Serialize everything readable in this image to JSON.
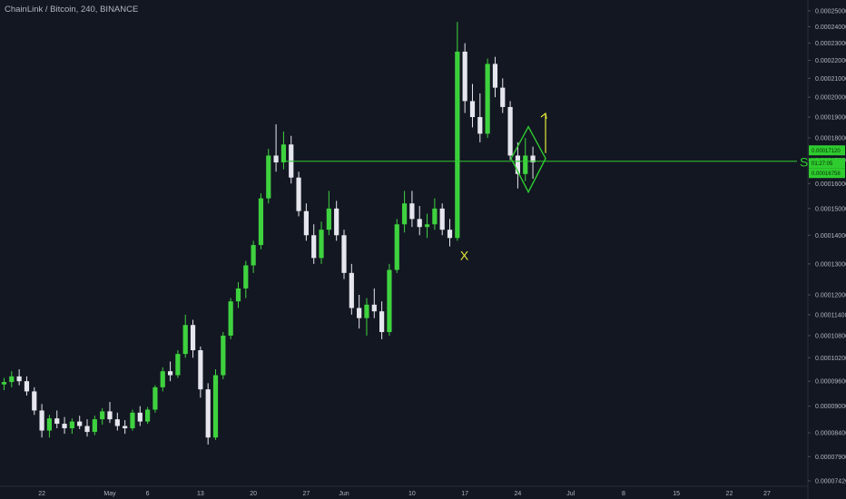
{
  "header": {
    "title": "ChainLink / Bitcoin, 240, BINANCE"
  },
  "colors": {
    "background": "#131722",
    "up": "#3fd23f",
    "down": "#e6e6ee",
    "support": "#2ecc2e",
    "arrow": "#e6e63a",
    "axis_text": "#b2b5be",
    "price_tag": "#2ecc2e"
  },
  "chart_data": {
    "type": "candlestick",
    "y_ticks": [
      "0.00007420",
      "0.00007900",
      "0.00008400",
      "0.00009000",
      "0.00009600",
      "0.00010200",
      "0.00010800",
      "0.00011400",
      "0.00012000",
      "0.00013000",
      "0.00014000",
      "0.00015000",
      "0.00016000",
      "0.00017000",
      "0.00018000",
      "0.00019000",
      "0.00020000",
      "0.00021000",
      "0.00022000",
      "0.00023000",
      "0.00024000",
      "0.00025000"
    ],
    "x_ticks": [
      "22",
      "May",
      "6",
      "13",
      "20",
      "27",
      "Jun",
      "10",
      "17",
      "24",
      "Jul",
      "8",
      "15",
      "22",
      "27"
    ],
    "price_tags": [
      "0.00017120",
      "01:27:05",
      "0.00016758"
    ],
    "annotations": {
      "support_label": "S",
      "marker_label": "X"
    },
    "series": [
      {
        "values": [
          [
            "2019-04-17",
            9.52e-05,
            9.68e-05,
            9.38e-05,
            9.58e-05
          ],
          [
            "2019-04-18",
            9.58e-05,
            9.85e-05,
            9.45e-05,
            9.72e-05
          ],
          [
            "2019-04-19",
            9.72e-05,
            9.9e-05,
            9.5e-05,
            9.6e-05
          ],
          [
            "2019-04-20",
            9.6e-05,
            9.72e-05,
            9.25e-05,
            9.35e-05
          ],
          [
            "2019-04-21",
            9.35e-05,
            9.45e-05,
            8.8e-05,
            8.9e-05
          ],
          [
            "2019-04-22",
            8.9e-05,
            9.05e-05,
            8.3e-05,
            8.45e-05
          ],
          [
            "2019-04-23",
            8.45e-05,
            8.8e-05,
            8.3e-05,
            8.72e-05
          ],
          [
            "2019-04-24",
            8.72e-05,
            8.9e-05,
            8.5e-05,
            8.6e-05
          ],
          [
            "2019-04-25",
            8.6e-05,
            8.75e-05,
            8.38e-05,
            8.5e-05
          ],
          [
            "2019-04-26",
            8.5e-05,
            8.72e-05,
            8.38e-05,
            8.65e-05
          ],
          [
            "2019-04-27",
            8.65e-05,
            8.78e-05,
            8.48e-05,
            8.55e-05
          ],
          [
            "2019-04-28",
            8.55e-05,
            8.7e-05,
            8.32e-05,
            8.42e-05
          ],
          [
            "2019-04-29",
            8.42e-05,
            8.78e-05,
            8.35e-05,
            8.7e-05
          ],
          [
            "2019-04-30",
            8.7e-05,
            8.95e-05,
            8.58e-05,
            8.88e-05
          ],
          [
            "2019-05-01",
            8.88e-05,
            9.1e-05,
            8.62e-05,
            8.7e-05
          ],
          [
            "2019-05-02",
            8.7e-05,
            8.85e-05,
            8.45e-05,
            8.55e-05
          ],
          [
            "2019-05-03",
            8.55e-05,
            8.68e-05,
            8.38e-05,
            8.5e-05
          ],
          [
            "2019-05-04",
            8.5e-05,
            8.92e-05,
            8.45e-05,
            8.85e-05
          ],
          [
            "2019-05-05",
            8.85e-05,
            9e-05,
            8.55e-05,
            8.65e-05
          ],
          [
            "2019-05-06",
            8.65e-05,
            8.98e-05,
            8.6e-05,
            8.92e-05
          ],
          [
            "2019-05-07",
            8.92e-05,
            9.5e-05,
            8.85e-05,
            9.45e-05
          ],
          [
            "2019-05-08",
            9.45e-05,
            9.95e-05,
            9.35e-05,
            9.85e-05
          ],
          [
            "2019-05-09",
            9.85e-05,
            0.000101,
            9.6e-05,
            9.75e-05
          ],
          [
            "2019-05-10",
            9.75e-05,
            0.000104,
            9.68e-05,
            0.000103
          ],
          [
            "2019-05-11",
            0.000103,
            0.000114,
            0.000102,
            0.000111
          ],
          [
            "2019-05-12",
            0.000111,
            0.0001125,
            0.000102,
            0.000104
          ],
          [
            "2019-05-13",
            0.000104,
            0.000105,
            9.2e-05,
            9.4e-05
          ],
          [
            "2019-05-14",
            9.4e-05,
            9.55e-05,
            8.15e-05,
            8.3e-05
          ],
          [
            "2019-05-15",
            8.3e-05,
            9.9e-05,
            8.25e-05,
            9.75e-05
          ],
          [
            "2019-05-16",
            9.75e-05,
            0.000109,
            9.65e-05,
            0.000108
          ],
          [
            "2019-05-17",
            0.000108,
            0.000119,
            0.000107,
            0.000118
          ],
          [
            "2019-05-18",
            0.000118,
            0.000124,
            0.000116,
            0.000122
          ],
          [
            "2019-05-19",
            0.000122,
            0.000131,
            0.000119,
            0.0001295
          ],
          [
            "2019-05-20",
            0.0001295,
            0.000138,
            0.000127,
            0.0001365
          ],
          [
            "2019-05-21",
            0.0001365,
            0.000156,
            0.000135,
            0.000154
          ],
          [
            "2019-05-22",
            0.000154,
            0.000175,
            0.000152,
            0.000172
          ],
          [
            "2019-05-23",
            0.000172,
            0.0001865,
            0.000165,
            0.000169
          ],
          [
            "2019-05-24",
            0.000169,
            0.000183,
            0.000166,
            0.000177
          ],
          [
            "2019-05-25",
            0.000177,
            0.000181,
            0.00016,
            0.0001625
          ],
          [
            "2019-05-26",
            0.0001625,
            0.000165,
            0.000147,
            0.000149
          ],
          [
            "2019-05-27",
            0.000149,
            0.000152,
            0.000138,
            0.00014
          ],
          [
            "2019-05-28",
            0.00014,
            0.000144,
            0.00013,
            0.000132
          ],
          [
            "2019-05-29",
            0.000132,
            0.000145,
            0.00013,
            0.000142
          ],
          [
            "2019-05-30",
            0.000142,
            0.000157,
            0.00014,
            0.00015
          ],
          [
            "2019-05-31",
            0.00015,
            0.000153,
            0.000138,
            0.00014
          ],
          [
            "2019-06-01",
            0.00014,
            0.000142,
            0.000125,
            0.000127
          ],
          [
            "2019-06-02",
            0.000127,
            0.00013,
            0.000114,
            0.000116
          ],
          [
            "2019-06-03",
            0.000116,
            0.00012,
            0.00011,
            0.000113
          ],
          [
            "2019-06-04",
            0.000113,
            0.000119,
            0.000108,
            0.000117
          ],
          [
            "2019-06-05",
            0.000117,
            0.000122,
            0.000113,
            0.000115
          ],
          [
            "2019-06-06",
            0.000115,
            0.000118,
            0.000107,
            0.000109
          ],
          [
            "2019-06-07",
            0.000109,
            0.00013,
            0.000108,
            0.000128
          ],
          [
            "2019-06-08",
            0.000128,
            0.000146,
            0.000127,
            0.000144
          ],
          [
            "2019-06-09",
            0.000144,
            0.000157,
            0.000141,
            0.000152
          ],
          [
            "2019-06-10",
            0.000152,
            0.000157,
            0.000143,
            0.000146
          ],
          [
            "2019-06-11",
            0.000146,
            0.000151,
            0.00014,
            0.000143
          ],
          [
            "2019-06-12",
            0.000143,
            0.000148,
            0.000139,
            0.000144
          ],
          [
            "2019-06-13",
            0.000144,
            0.000154,
            0.000142,
            0.00015
          ],
          [
            "2019-06-14",
            0.00015,
            0.000152,
            0.00014,
            0.000142
          ],
          [
            "2019-06-15",
            0.000142,
            0.000146,
            0.000136,
            0.000139
          ],
          [
            "2019-06-16",
            0.000139,
            0.000243,
            0.000138,
            0.000225
          ],
          [
            "2019-06-17",
            0.000225,
            0.00023,
            0.000192,
            0.000198
          ],
          [
            "2019-06-18",
            0.000198,
            0.000207,
            0.000185,
            0.00019
          ],
          [
            "2019-06-19",
            0.00019,
            0.000202,
            0.000178,
            0.000182
          ],
          [
            "2019-06-20",
            0.000182,
            0.000221,
            0.00018,
            0.000218
          ],
          [
            "2019-06-21",
            0.000218,
            0.000222,
            0.0002,
            0.000205
          ],
          [
            "2019-06-22",
            0.000205,
            0.00021,
            0.000192,
            0.000195
          ],
          [
            "2019-06-23",
            0.000195,
            0.000198,
            0.00017,
            0.000172
          ],
          [
            "2019-06-24",
            0.000172,
            0.000178,
            0.000158,
            0.000164
          ],
          [
            "2019-06-25",
            0.000164,
            0.00018,
            0.000161,
            0.000172
          ],
          [
            "2019-06-26",
            0.000172,
            0.000176,
            0.000162,
            0.000169
          ]
        ]
      }
    ]
  }
}
